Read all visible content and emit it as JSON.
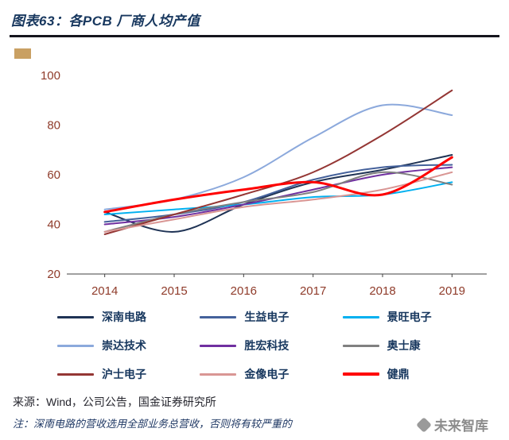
{
  "header": {
    "title": "图表63：各PCB 厂商人均产值"
  },
  "footer": {
    "source": "来源：Wind，公司公告，国金证券研究所",
    "note": "注：深南电路的营收选用全部业务总营收，否则将有较严重的",
    "watermark": "未来智库"
  },
  "chart_data": {
    "type": "line",
    "title": "各PCB 厂商人均产值",
    "x": [
      2014,
      2015,
      2016,
      2017,
      2018,
      2019
    ],
    "xlabel": "",
    "ylabel": "",
    "ylim": [
      20,
      100
    ],
    "yticks": [
      20,
      40,
      60,
      80,
      100
    ],
    "grid": false,
    "legend_position": "bottom",
    "axis_label_color": "#8F3B2A",
    "axis_line_color": "#404040",
    "series": [
      {
        "name": "深南电路",
        "color": "#1F3355",
        "width": 2,
        "values": [
          45,
          37,
          48,
          57,
          62,
          68
        ]
      },
      {
        "name": "生益电子",
        "color": "#44619B",
        "width": 2,
        "values": [
          41,
          44,
          49,
          58,
          63,
          64
        ]
      },
      {
        "name": "景旺电子",
        "color": "#00B0F0",
        "width": 2,
        "values": [
          44,
          46,
          48,
          51,
          52,
          57
        ]
      },
      {
        "name": "崇达技术",
        "color": "#8CA9DC",
        "width": 2,
        "values": [
          46,
          50,
          59,
          75,
          88,
          84
        ]
      },
      {
        "name": "胜宏科技",
        "color": "#7030A0",
        "width": 2,
        "values": [
          40,
          43,
          48,
          54,
          60,
          63
        ]
      },
      {
        "name": "奥士康",
        "color": "#808080",
        "width": 2,
        "values": [
          37,
          44,
          49,
          53,
          61,
          56
        ]
      },
      {
        "name": "沪士电子",
        "color": "#943634",
        "width": 2,
        "values": [
          36,
          44,
          52,
          61,
          76,
          94
        ]
      },
      {
        "name": "金像电子",
        "color": "#D99694",
        "width": 2,
        "values": [
          37,
          42,
          47,
          50,
          54,
          61
        ]
      },
      {
        "name": "健鼎",
        "color": "#FF0000",
        "width": 3,
        "values": [
          45,
          50,
          54,
          57,
          52,
          67
        ]
      }
    ]
  }
}
